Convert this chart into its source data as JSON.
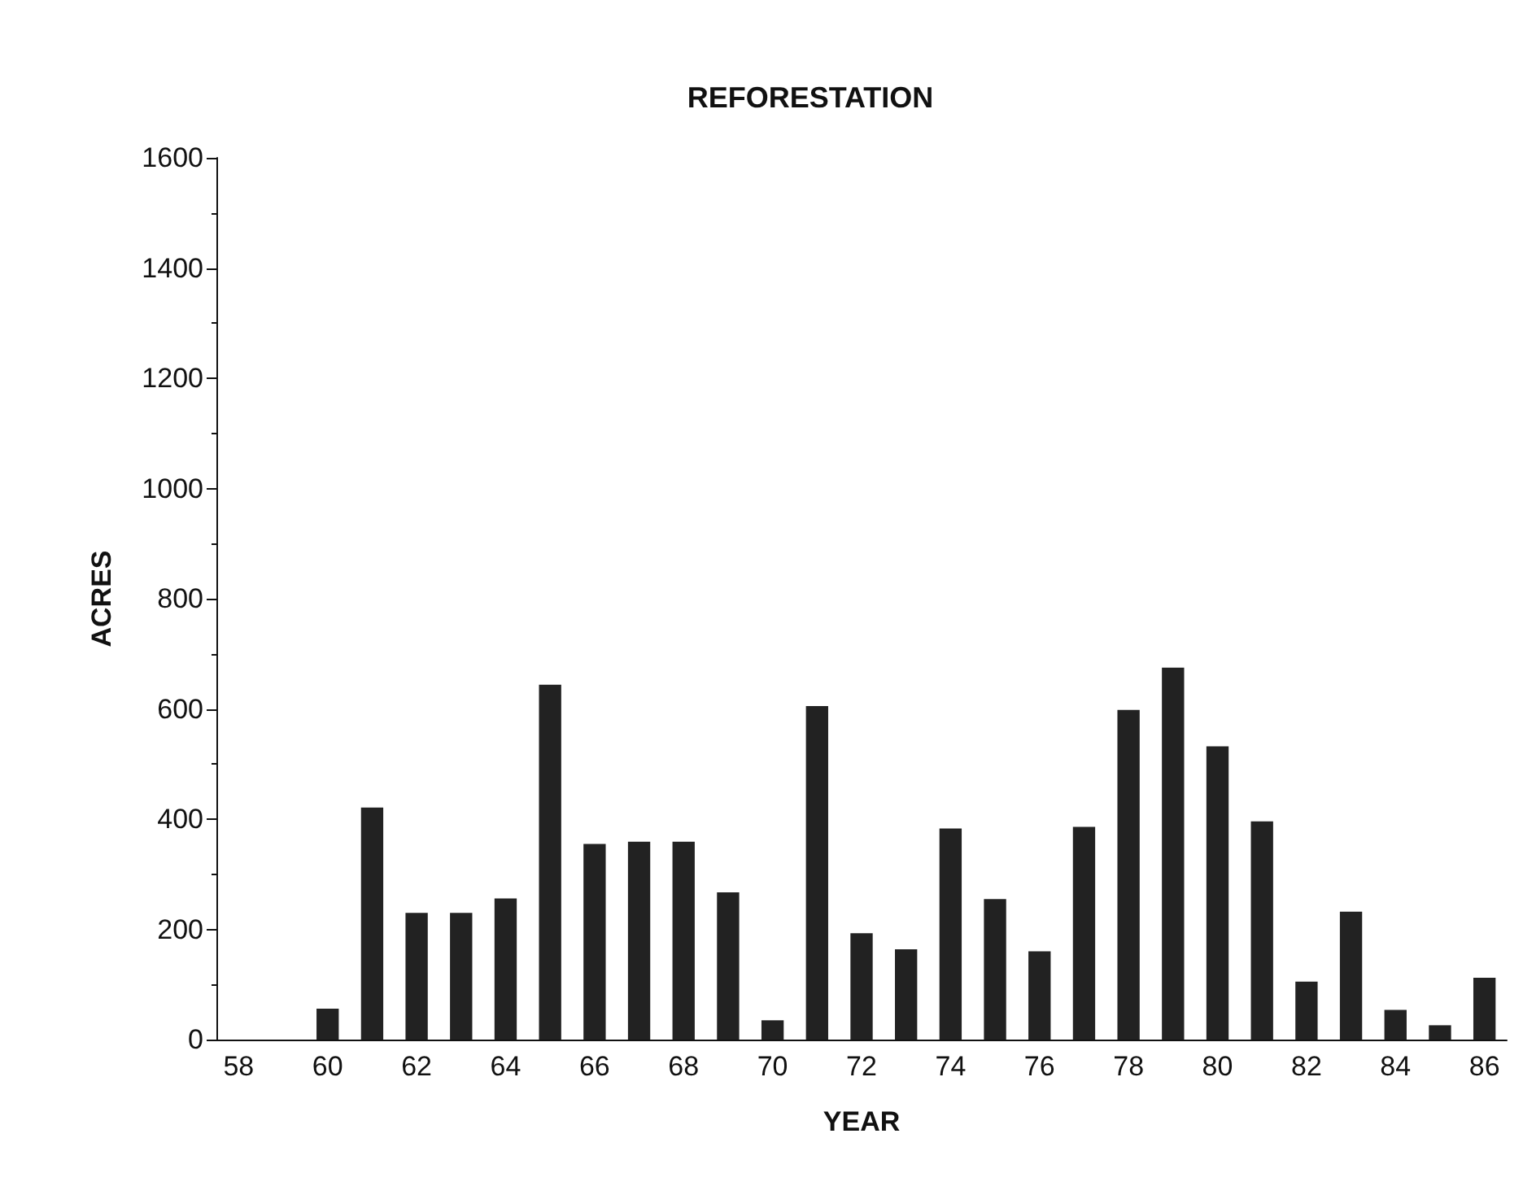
{
  "chart_data": {
    "type": "bar",
    "title": "REFORESTATION",
    "xlabel": "YEAR",
    "ylabel": "ACRES",
    "categories": [
      "58",
      null,
      "60",
      null,
      "62",
      null,
      "64",
      null,
      "66",
      null,
      "68",
      null,
      "70",
      null,
      "72",
      null,
      "74",
      null,
      "76",
      null,
      "78",
      null,
      "80",
      null,
      "82",
      null,
      "84",
      null,
      "86"
    ],
    "values": [
      0,
      0,
      56,
      421,
      230,
      230,
      256,
      644,
      355,
      359,
      359,
      267,
      35,
      605,
      193,
      164,
      383,
      255,
      160,
      386,
      598,
      675,
      532,
      396,
      105,
      232,
      54,
      26,
      112
    ],
    "color": "#222222",
    "ylim": [
      0,
      1600
    ],
    "yticks": [
      0,
      200,
      400,
      600,
      800,
      1000,
      1200,
      1400,
      1600
    ],
    "grid": false
  }
}
